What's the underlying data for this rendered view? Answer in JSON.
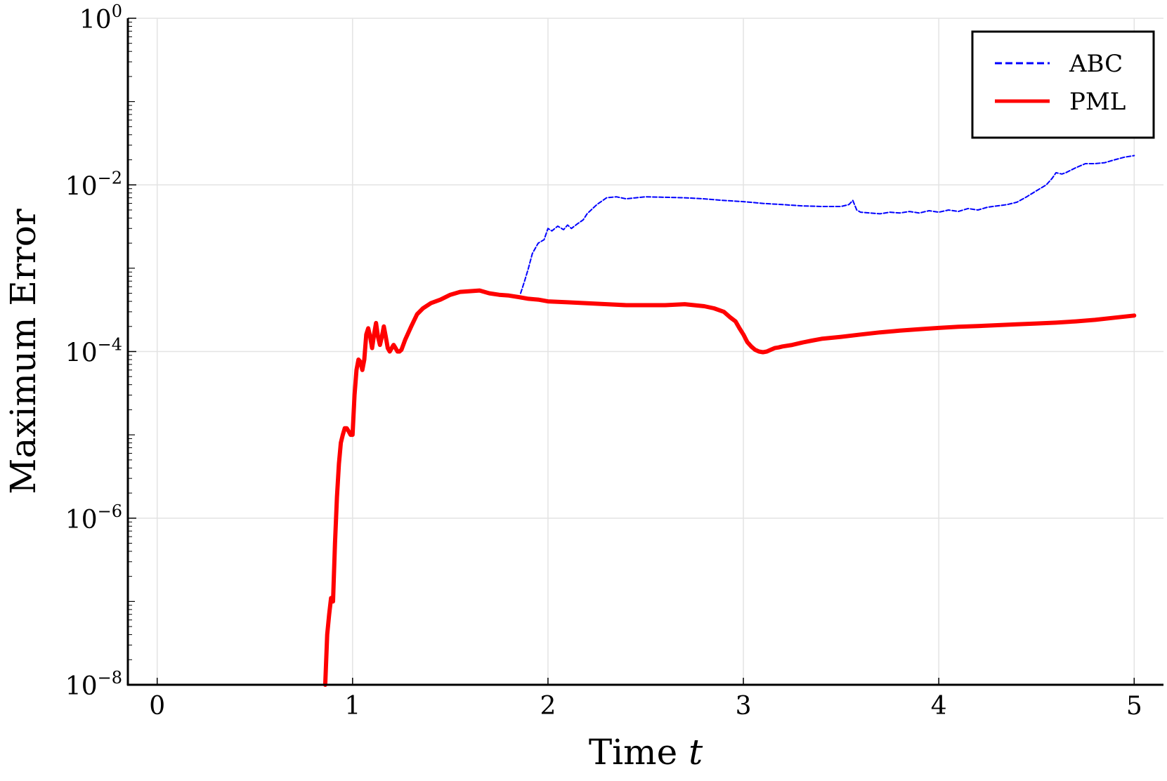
{
  "chart_data": {
    "type": "line",
    "title": "",
    "xlabel": "Time",
    "xlabel_var": "t",
    "ylabel": "Maximum Error",
    "xlim": [
      -0.15,
      5.15
    ],
    "ylim": [
      1e-08,
      1
    ],
    "yscale": "log",
    "grid": true,
    "legend_position": "top-right",
    "x_ticks": [
      0,
      1,
      2,
      3,
      4,
      5
    ],
    "x_tick_labels": [
      "0",
      "1",
      "2",
      "3",
      "4",
      "5"
    ],
    "y_ticks": [
      1e-08,
      1e-06,
      0.0001,
      0.01,
      1
    ],
    "y_tick_labels": [
      {
        "base": "10",
        "exp": "−8"
      },
      {
        "base": "10",
        "exp": "−6"
      },
      {
        "base": "10",
        "exp": "−4"
      },
      {
        "base": "10",
        "exp": "−2"
      },
      {
        "base": "10",
        "exp": "0"
      }
    ],
    "series": [
      {
        "name": "ABC",
        "color": "#0000ff",
        "style": "dashed",
        "x": [
          1.86,
          1.88,
          1.9,
          1.92,
          1.95,
          1.98,
          2.0,
          2.02,
          2.05,
          2.08,
          2.1,
          2.12,
          2.15,
          2.18,
          2.2,
          2.25,
          2.3,
          2.35,
          2.4,
          2.45,
          2.5,
          2.6,
          2.7,
          2.8,
          2.9,
          3.0,
          3.1,
          3.2,
          3.3,
          3.4,
          3.5,
          3.54,
          3.56,
          3.58,
          3.6,
          3.65,
          3.7,
          3.75,
          3.8,
          3.85,
          3.9,
          3.95,
          4.0,
          4.05,
          4.1,
          4.15,
          4.2,
          4.25,
          4.3,
          4.35,
          4.4,
          4.45,
          4.5,
          4.55,
          4.58,
          4.6,
          4.63,
          4.65,
          4.7,
          4.75,
          4.8,
          4.85,
          4.9,
          4.95,
          5.0
        ],
        "y": [
          0.0005,
          0.0007,
          0.001,
          0.0015,
          0.002,
          0.0022,
          0.003,
          0.0028,
          0.0032,
          0.0029,
          0.0033,
          0.003,
          0.0034,
          0.0038,
          0.0045,
          0.0058,
          0.007,
          0.0072,
          0.0068,
          0.007,
          0.0072,
          0.0071,
          0.007,
          0.0068,
          0.0065,
          0.0063,
          0.006,
          0.0058,
          0.0056,
          0.0055,
          0.0055,
          0.0058,
          0.0065,
          0.005,
          0.0047,
          0.0046,
          0.0045,
          0.0047,
          0.0046,
          0.0048,
          0.0046,
          0.0049,
          0.0047,
          0.005,
          0.0048,
          0.0052,
          0.005,
          0.0054,
          0.0056,
          0.0058,
          0.0062,
          0.0072,
          0.0085,
          0.01,
          0.012,
          0.014,
          0.0135,
          0.014,
          0.016,
          0.018,
          0.018,
          0.0185,
          0.02,
          0.0215,
          0.0225
        ]
      },
      {
        "name": "PML",
        "color": "#ff0000",
        "style": "solid",
        "x": [
          0.86,
          0.87,
          0.88,
          0.89,
          0.9,
          0.91,
          0.92,
          0.93,
          0.94,
          0.95,
          0.96,
          0.97,
          0.98,
          0.99,
          1.0,
          1.01,
          1.02,
          1.03,
          1.04,
          1.05,
          1.06,
          1.07,
          1.08,
          1.09,
          1.1,
          1.11,
          1.12,
          1.13,
          1.14,
          1.15,
          1.16,
          1.17,
          1.18,
          1.19,
          1.2,
          1.21,
          1.22,
          1.23,
          1.24,
          1.25,
          1.27,
          1.3,
          1.33,
          1.36,
          1.4,
          1.45,
          1.5,
          1.55,
          1.6,
          1.65,
          1.7,
          1.75,
          1.8,
          1.85,
          1.9,
          1.95,
          2.0,
          2.1,
          2.2,
          2.3,
          2.4,
          2.5,
          2.6,
          2.7,
          2.8,
          2.85,
          2.9,
          2.93,
          2.96,
          2.98,
          3.0,
          3.02,
          3.04,
          3.06,
          3.08,
          3.1,
          3.12,
          3.14,
          3.16,
          3.18,
          3.2,
          3.25,
          3.3,
          3.35,
          3.4,
          3.5,
          3.6,
          3.7,
          3.8,
          3.9,
          4.0,
          4.1,
          4.2,
          4.3,
          4.4,
          4.5,
          4.6,
          4.7,
          4.8,
          4.9,
          5.0
        ],
        "y": [
          1e-08,
          4e-08,
          7e-08,
          1.1e-07,
          1e-07,
          5e-07,
          1.8e-06,
          4.5e-06,
          8e-06,
          1e-05,
          1.2e-05,
          1.2e-05,
          1.1e-05,
          1e-05,
          1e-05,
          3e-05,
          6e-05,
          8e-05,
          7.5e-05,
          6e-05,
          8e-05,
          0.00016,
          0.00019,
          0.00015,
          0.00011,
          0.00016,
          0.00022,
          0.00015,
          0.00012,
          0.00015,
          0.0002,
          0.00015,
          0.00011,
          0.0001,
          0.00011,
          0.00012,
          0.00011,
          0.0001,
          0.0001,
          0.000105,
          0.00014,
          0.0002,
          0.00028,
          0.00033,
          0.00038,
          0.00042,
          0.00048,
          0.00052,
          0.00053,
          0.00054,
          0.0005,
          0.00048,
          0.00047,
          0.00045,
          0.00043,
          0.00042,
          0.0004,
          0.00039,
          0.00038,
          0.00037,
          0.00036,
          0.00036,
          0.00036,
          0.00037,
          0.00035,
          0.00033,
          0.0003,
          0.00026,
          0.00023,
          0.00019,
          0.00016,
          0.00013,
          0.000115,
          0.000105,
          0.0001,
          9.8e-05,
          0.0001,
          0.000105,
          0.00011,
          0.000112,
          0.000115,
          0.00012,
          0.000128,
          0.000135,
          0.000142,
          0.00015,
          0.00016,
          0.00017,
          0.000178,
          0.000185,
          0.000192,
          0.000198,
          0.000202,
          0.000207,
          0.000212,
          0.000217,
          0.000222,
          0.00023,
          0.00024,
          0.000255,
          0.00027
        ]
      }
    ]
  }
}
